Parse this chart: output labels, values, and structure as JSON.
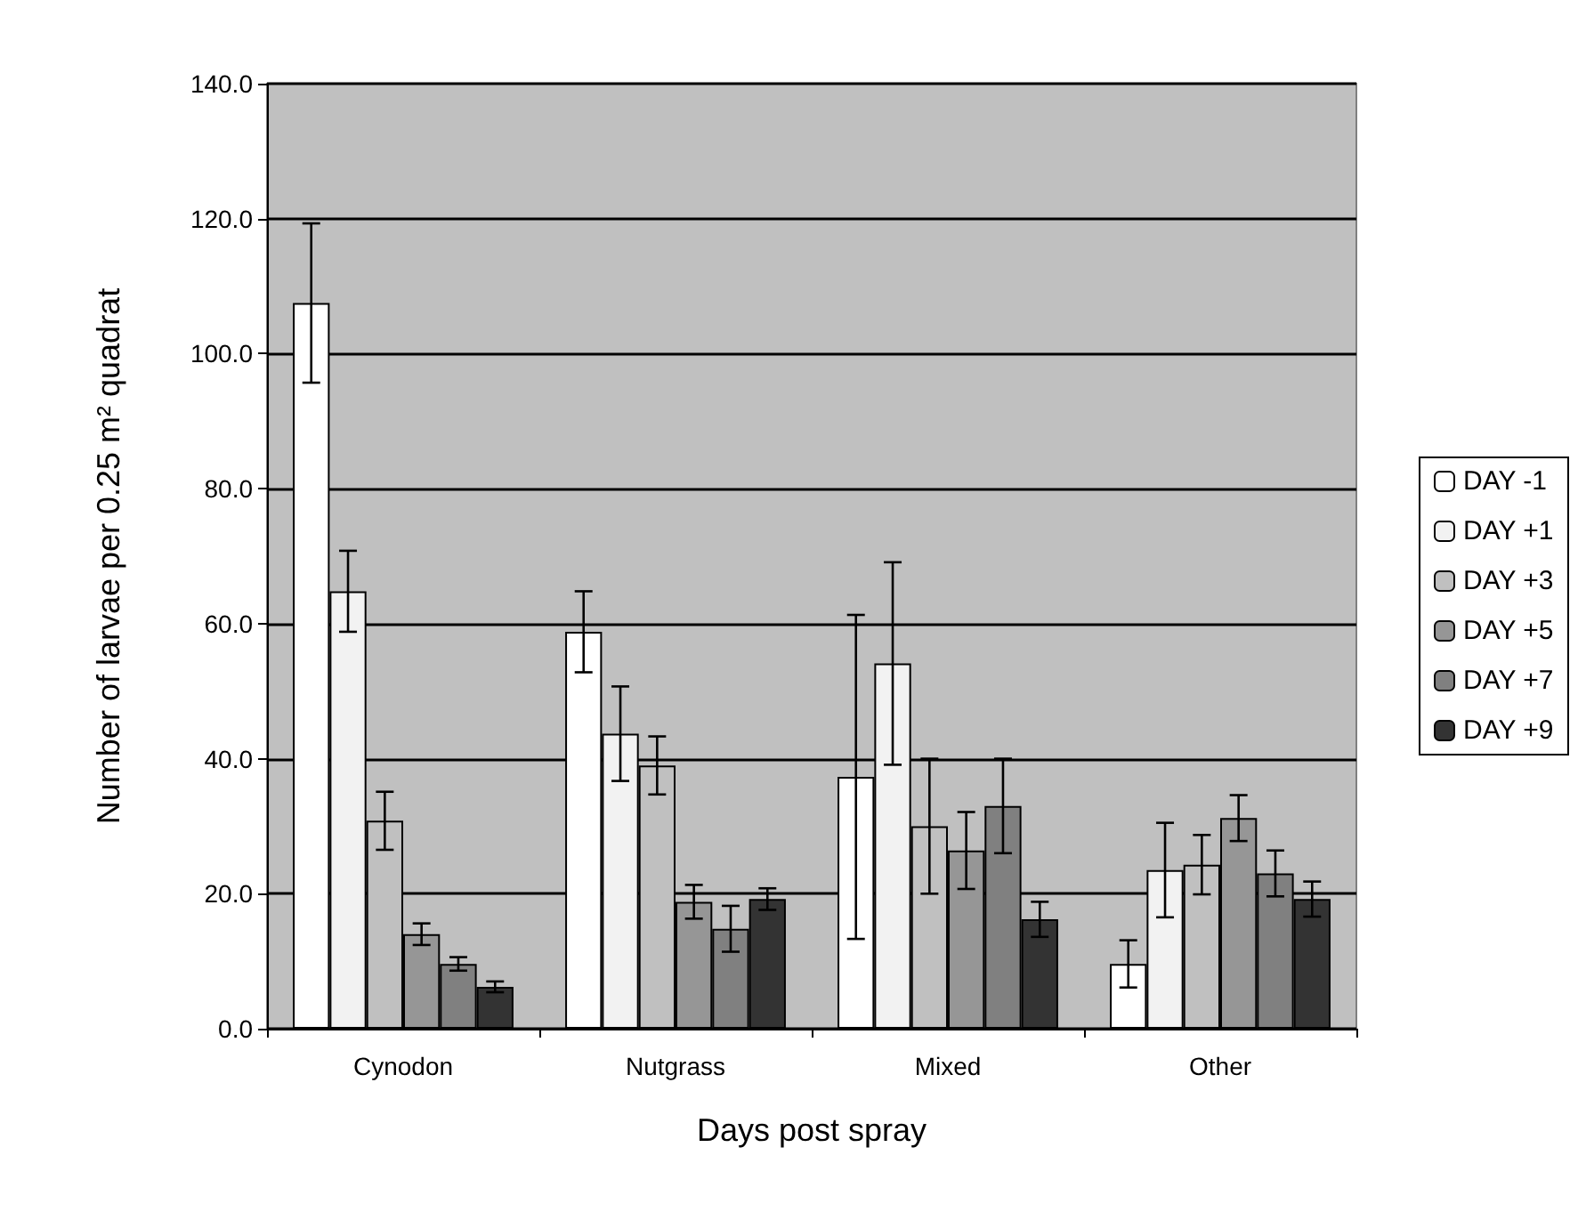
{
  "chart_data": {
    "type": "bar",
    "xlabel": "Days post spray",
    "ylabel": "Number of larvae per 0.25 m² quadrat",
    "categories": [
      "Cynodon",
      "Nutgrass",
      "Mixed",
      "Other"
    ],
    "series": [
      {
        "name": "DAY -1",
        "color": "#ffffff",
        "values": [
          107.5,
          58.8,
          37.3,
          9.6
        ],
        "errors": [
          11.8,
          6,
          24,
          3.5
        ]
      },
      {
        "name": "DAY +1",
        "color": "#f2f2f2",
        "values": [
          64.8,
          43.7,
          54.1,
          23.5
        ],
        "errors": [
          6,
          7,
          15,
          7
        ]
      },
      {
        "name": "DAY +3",
        "color": "#c0c0c0",
        "values": [
          30.8,
          39,
          30,
          24.3
        ],
        "errors": [
          4.3,
          4.3,
          10,
          4.4
        ]
      },
      {
        "name": "DAY +5",
        "color": "#969696",
        "values": [
          14,
          18.8,
          26.4,
          31.2
        ],
        "errors": [
          1.6,
          2.5,
          5.7,
          3.4
        ]
      },
      {
        "name": "DAY +7",
        "color": "#808080",
        "values": [
          9.6,
          14.8,
          33,
          23
        ],
        "errors": [
          1,
          3.4,
          7,
          3.4
        ]
      },
      {
        "name": "DAY +9",
        "color": "#333333",
        "values": [
          6.2,
          19.2,
          16.2,
          19.2
        ],
        "errors": [
          0.8,
          1.6,
          2.6,
          2.6
        ]
      }
    ],
    "ylim": [
      0,
      140
    ],
    "yticks": [
      {
        "value": 0,
        "label": "0.0"
      },
      {
        "value": 20,
        "label": "20.0"
      },
      {
        "value": 40,
        "label": "40.0"
      },
      {
        "value": 60,
        "label": "60.0"
      },
      {
        "value": 80,
        "label": "80.0"
      },
      {
        "value": 100,
        "label": "100.0"
      },
      {
        "value": 120,
        "label": "120.0"
      },
      {
        "value": 140,
        "label": "140.0"
      }
    ],
    "grid": "y",
    "legend": "right"
  }
}
